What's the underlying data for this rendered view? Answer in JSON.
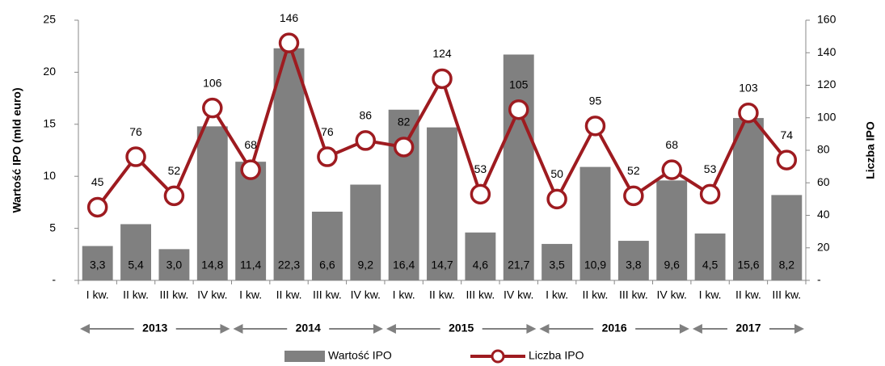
{
  "chart_data": {
    "type": "bar-line",
    "categories": [
      "I kw.",
      "II kw.",
      "III kw.",
      "IV kw.",
      "I kw.",
      "II kw.",
      "III kw.",
      "IV kw.",
      "I kw.",
      "II kw.",
      "III kw.",
      "IV kw.",
      "I kw.",
      "II kw.",
      "III kw.",
      "IV kw.",
      "I kw.",
      "II kw.",
      "III kw."
    ],
    "year_groups": [
      {
        "label": "2013",
        "count": 4
      },
      {
        "label": "2014",
        "count": 4
      },
      {
        "label": "2015",
        "count": 4
      },
      {
        "label": "2016",
        "count": 4
      },
      {
        "label": "2017",
        "count": 3
      }
    ],
    "series": [
      {
        "name": "Wartość IPO",
        "type": "bar",
        "color": "#808080",
        "axis": "y",
        "values": [
          3.3,
          5.4,
          3.0,
          14.8,
          11.4,
          22.3,
          6.6,
          9.2,
          16.4,
          14.7,
          4.6,
          21.7,
          3.5,
          10.9,
          3.8,
          9.6,
          4.5,
          15.6,
          8.2
        ],
        "value_labels": [
          "3,3",
          "5,4",
          "3,0",
          "14,8",
          "11,4",
          "22,3",
          "6,6",
          "9,2",
          "16,4",
          "14,7",
          "4,6",
          "21,7",
          "3,5",
          "10,9",
          "3,8",
          "9,6",
          "4,5",
          "15,6",
          "8,2"
        ]
      },
      {
        "name": "Liczba IPO",
        "type": "line",
        "color": "#9e1b20",
        "axis": "y2",
        "values": [
          45,
          76,
          52,
          106,
          68,
          146,
          76,
          86,
          82,
          124,
          53,
          105,
          50,
          95,
          52,
          68,
          53,
          103,
          74
        ]
      }
    ],
    "ylabel": "Wartość IPO (mld euro)",
    "y2label": "Liczba IPO",
    "ylim": [
      0,
      25
    ],
    "yticks": [
      {
        "value": 0,
        "label": "-"
      },
      5,
      10,
      15,
      20,
      25
    ],
    "y2lim": [
      0,
      160
    ],
    "y2ticks": [
      {
        "value": 0,
        "label": "-"
      },
      20,
      40,
      60,
      80,
      100,
      120,
      140,
      160
    ],
    "legend": "bottom"
  }
}
